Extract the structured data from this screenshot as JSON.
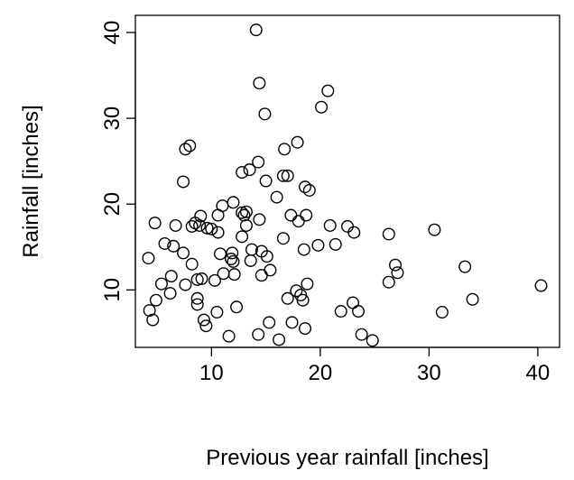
{
  "chart_data": {
    "type": "scatter",
    "title": "",
    "xlabel": "Previous year rainfall [inches]",
    "ylabel": "Rainfall [inches]",
    "xlim": [
      3.0,
      42.0
    ],
    "ylim": [
      3.3,
      42.0
    ],
    "x_ticks": [
      10,
      20,
      30,
      40
    ],
    "y_ticks": [
      10,
      20,
      30,
      40
    ],
    "grid": false,
    "legend": "none",
    "marker": "open-circle",
    "series": [
      {
        "name": "rainfall",
        "x": [
          14.1,
          14.4,
          20.7,
          20.1,
          14.9,
          8.0,
          7.6,
          17.9,
          16.7,
          12.8,
          13.5,
          16.6,
          17.0,
          14.3,
          15.0,
          7.4,
          18.6,
          19.0,
          16.0,
          12.0,
          9.0,
          11.0,
          12.8,
          13.0,
          10.0,
          17.3,
          18.0,
          18.7,
          13.2,
          14.4,
          10.6,
          4.8,
          8.9,
          6.7,
          9.6,
          8.2,
          8.5,
          13.2,
          22.5,
          20.9,
          30.5,
          26.3,
          23.1,
          16.6,
          19.8,
          12.8,
          10.6,
          5.7,
          6.5,
          18.5,
          21.4,
          15.1,
          13.7,
          11.9,
          14.6,
          12.0,
          10.8,
          7.4,
          11.8,
          4.2,
          26.9,
          27.1,
          8.2,
          15.4,
          12.1,
          13.6,
          11.1,
          14.6,
          9.1,
          8.7,
          5.4,
          7.6,
          6.3,
          18.8,
          26.3,
          33.3,
          17.8,
          10.3,
          8.7,
          4.9,
          6.2,
          17.0,
          18.2,
          18.4,
          8.7,
          23.0,
          34.0,
          40.3,
          12.3,
          10.5,
          4.3,
          23.5,
          21.9,
          31.2,
          9.3,
          4.6,
          15.3,
          17.4,
          9.5,
          18.6,
          14.3,
          11.6,
          23.8,
          16.2,
          24.8
        ],
        "y": [
          40.3,
          34.1,
          33.2,
          31.3,
          30.5,
          26.8,
          26.4,
          27.2,
          26.4,
          23.7,
          24.0,
          23.3,
          23.3,
          24.9,
          22.7,
          22.6,
          22.0,
          21.6,
          20.8,
          20.2,
          18.6,
          19.8,
          19.0,
          18.7,
          17.1,
          18.7,
          18.0,
          18.7,
          17.5,
          18.2,
          18.7,
          17.8,
          17.5,
          17.5,
          17.2,
          17.4,
          17.8,
          19.1,
          17.4,
          17.5,
          17.0,
          16.5,
          16.7,
          16.0,
          15.2,
          16.2,
          16.7,
          15.4,
          15.1,
          14.7,
          15.3,
          13.9,
          14.7,
          14.3,
          14.5,
          13.3,
          14.2,
          14.3,
          13.6,
          13.7,
          12.9,
          12.0,
          13.0,
          12.3,
          11.8,
          13.4,
          11.9,
          11.7,
          11.3,
          11.2,
          10.7,
          10.6,
          11.6,
          10.7,
          10.9,
          12.7,
          9.9,
          11.1,
          9.0,
          8.8,
          9.6,
          9.0,
          9.4,
          8.8,
          8.3,
          8.5,
          8.9,
          10.5,
          8.0,
          7.4,
          7.6,
          7.5,
          7.5,
          7.4,
          6.5,
          6.5,
          6.2,
          6.2,
          5.8,
          5.5,
          4.8,
          4.6,
          4.8,
          4.2,
          4.1
        ]
      }
    ]
  }
}
